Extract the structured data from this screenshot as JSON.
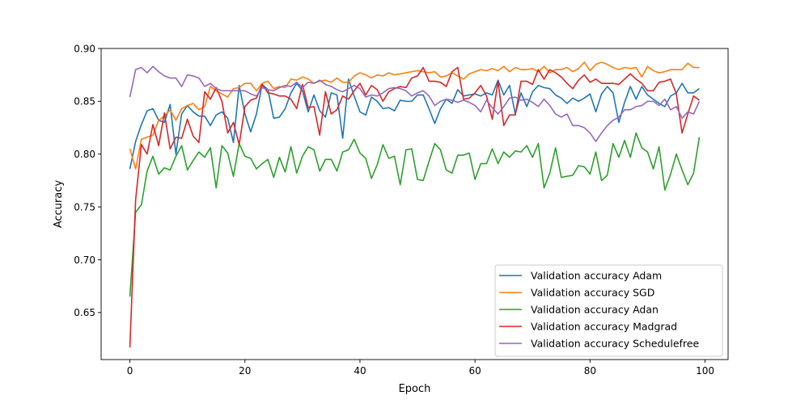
{
  "chart_data": {
    "type": "line",
    "title": "",
    "xlabel": "Epoch",
    "ylabel": "Accuracy",
    "xlim": [
      -5,
      104
    ],
    "ylim": [
      0.6055,
      0.9
    ],
    "xticks": [
      0,
      20,
      40,
      60,
      80,
      100
    ],
    "yticks": [
      0.65,
      0.7,
      0.75,
      0.8,
      0.85,
      0.9
    ],
    "xtick_labels": [
      "0",
      "20",
      "40",
      "60",
      "80",
      "100"
    ],
    "ytick_labels": [
      "0.65",
      "0.70",
      "0.75",
      "0.80",
      "0.85",
      "0.90"
    ],
    "grid": false,
    "legend_position": "lower right",
    "x": [
      0,
      1,
      2,
      3,
      4,
      5,
      6,
      7,
      8,
      9,
      10,
      11,
      12,
      13,
      14,
      15,
      16,
      17,
      18,
      19,
      20,
      21,
      22,
      23,
      24,
      25,
      26,
      27,
      28,
      29,
      30,
      31,
      32,
      33,
      34,
      35,
      36,
      37,
      38,
      39,
      40,
      41,
      42,
      43,
      44,
      45,
      46,
      47,
      48,
      49,
      50,
      51,
      52,
      53,
      54,
      55,
      56,
      57,
      58,
      59,
      60,
      61,
      62,
      63,
      64,
      65,
      66,
      67,
      68,
      69,
      70,
      71,
      72,
      73,
      74,
      75,
      76,
      77,
      78,
      79,
      80,
      81,
      82,
      83,
      84,
      85,
      86,
      87,
      88,
      89,
      90,
      91,
      92,
      93,
      94,
      95,
      96,
      97,
      98,
      99
    ],
    "series": [
      {
        "name": "Validation accuracy Adam",
        "color": "#1f77b4",
        "values": [
          0.786,
          0.812,
          0.828,
          0.841,
          0.843,
          0.832,
          0.83,
          0.847,
          0.8,
          0.838,
          0.846,
          0.84,
          0.836,
          0.836,
          0.827,
          0.837,
          0.84,
          0.834,
          0.811,
          0.865,
          0.838,
          0.821,
          0.838,
          0.866,
          0.861,
          0.834,
          0.835,
          0.843,
          0.858,
          0.867,
          0.86,
          0.84,
          0.856,
          0.841,
          0.835,
          0.858,
          0.856,
          0.815,
          0.871,
          0.855,
          0.84,
          0.837,
          0.854,
          0.85,
          0.843,
          0.844,
          0.841,
          0.851,
          0.85,
          0.85,
          0.856,
          0.856,
          0.843,
          0.829,
          0.843,
          0.852,
          0.848,
          0.861,
          0.855,
          0.856,
          0.857,
          0.855,
          0.858,
          0.856,
          0.87,
          0.856,
          0.865,
          0.838,
          0.858,
          0.845,
          0.859,
          0.865,
          0.863,
          0.862,
          0.856,
          0.853,
          0.848,
          0.853,
          0.85,
          0.853,
          0.857,
          0.84,
          0.857,
          0.864,
          0.858,
          0.83,
          0.849,
          0.864,
          0.852,
          0.864,
          0.856,
          0.852,
          0.848,
          0.845,
          0.855,
          0.858,
          0.867,
          0.858,
          0.858,
          0.862
        ]
      },
      {
        "name": "Validation accuracy SGD",
        "color": "#ff7f0e",
        "values": [
          0.805,
          0.786,
          0.814,
          0.816,
          0.818,
          0.832,
          0.836,
          0.842,
          0.832,
          0.843,
          0.846,
          0.848,
          0.842,
          0.845,
          0.864,
          0.86,
          0.857,
          0.854,
          0.862,
          0.863,
          0.867,
          0.867,
          0.86,
          0.867,
          0.869,
          0.862,
          0.864,
          0.863,
          0.871,
          0.87,
          0.873,
          0.871,
          0.867,
          0.869,
          0.87,
          0.868,
          0.872,
          0.868,
          0.868,
          0.874,
          0.877,
          0.875,
          0.872,
          0.875,
          0.874,
          0.877,
          0.875,
          0.876,
          0.877,
          0.878,
          0.879,
          0.878,
          0.877,
          0.878,
          0.873,
          0.874,
          0.877,
          0.874,
          0.871,
          0.876,
          0.878,
          0.88,
          0.879,
          0.881,
          0.879,
          0.883,
          0.878,
          0.882,
          0.88,
          0.88,
          0.881,
          0.878,
          0.883,
          0.877,
          0.88,
          0.88,
          0.882,
          0.878,
          0.881,
          0.887,
          0.879,
          0.885,
          0.887,
          0.885,
          0.882,
          0.88,
          0.882,
          0.881,
          0.882,
          0.873,
          0.883,
          0.879,
          0.877,
          0.878,
          0.88,
          0.88,
          0.88,
          0.886,
          0.882,
          0.882
        ]
      },
      {
        "name": "Validation accuracy Adan",
        "color": "#2ca02c",
        "values": [
          0.665,
          0.745,
          0.752,
          0.784,
          0.798,
          0.781,
          0.787,
          0.785,
          0.798,
          0.808,
          0.785,
          0.794,
          0.802,
          0.797,
          0.806,
          0.768,
          0.808,
          0.801,
          0.779,
          0.81,
          0.798,
          0.796,
          0.786,
          0.791,
          0.795,
          0.778,
          0.797,
          0.783,
          0.807,
          0.782,
          0.798,
          0.807,
          0.804,
          0.784,
          0.795,
          0.795,
          0.784,
          0.802,
          0.804,
          0.814,
          0.801,
          0.796,
          0.777,
          0.79,
          0.809,
          0.796,
          0.798,
          0.771,
          0.804,
          0.805,
          0.776,
          0.775,
          0.793,
          0.81,
          0.804,
          0.785,
          0.782,
          0.799,
          0.799,
          0.801,
          0.776,
          0.791,
          0.791,
          0.805,
          0.791,
          0.802,
          0.797,
          0.803,
          0.802,
          0.808,
          0.797,
          0.81,
          0.768,
          0.782,
          0.806,
          0.778,
          0.779,
          0.78,
          0.789,
          0.788,
          0.781,
          0.802,
          0.775,
          0.78,
          0.81,
          0.797,
          0.813,
          0.797,
          0.82,
          0.806,
          0.802,
          0.786,
          0.807,
          0.766,
          0.781,
          0.8,
          0.785,
          0.771,
          0.782,
          0.816
        ]
      },
      {
        "name": "Validation accuracy Madgrad",
        "color": "#d62728",
        "values": [
          0.617,
          0.757,
          0.809,
          0.8,
          0.828,
          0.808,
          0.839,
          0.805,
          0.816,
          0.815,
          0.833,
          0.817,
          0.811,
          0.859,
          0.852,
          0.863,
          0.85,
          0.82,
          0.83,
          0.809,
          0.845,
          0.851,
          0.853,
          0.866,
          0.858,
          0.857,
          0.855,
          0.855,
          0.852,
          0.843,
          0.866,
          0.844,
          0.845,
          0.818,
          0.859,
          0.838,
          0.842,
          0.855,
          0.852,
          0.86,
          0.867,
          0.856,
          0.865,
          0.861,
          0.85,
          0.859,
          0.862,
          0.864,
          0.863,
          0.872,
          0.874,
          0.882,
          0.869,
          0.869,
          0.868,
          0.864,
          0.878,
          0.882,
          0.852,
          0.853,
          0.858,
          0.865,
          0.855,
          0.833,
          0.869,
          0.827,
          0.837,
          0.837,
          0.869,
          0.869,
          0.866,
          0.88,
          0.871,
          0.88,
          0.877,
          0.873,
          0.867,
          0.862,
          0.87,
          0.875,
          0.868,
          0.871,
          0.867,
          0.867,
          0.867,
          0.866,
          0.871,
          0.876,
          0.871,
          0.867,
          0.86,
          0.86,
          0.868,
          0.869,
          0.871,
          0.857,
          0.82,
          0.838,
          0.855,
          0.851
        ]
      },
      {
        "name": "Validation accuracy Schedulefree",
        "color": "#9467bd",
        "values": [
          0.854,
          0.88,
          0.882,
          0.877,
          0.883,
          0.878,
          0.874,
          0.872,
          0.872,
          0.864,
          0.875,
          0.874,
          0.872,
          0.864,
          0.867,
          0.862,
          0.86,
          0.86,
          0.86,
          0.86,
          0.86,
          0.857,
          0.855,
          0.863,
          0.861,
          0.86,
          0.863,
          0.865,
          0.864,
          0.868,
          0.863,
          0.868,
          0.867,
          0.87,
          0.866,
          0.864,
          0.861,
          0.859,
          0.862,
          0.865,
          0.862,
          0.854,
          0.856,
          0.855,
          0.858,
          0.862,
          0.863,
          0.862,
          0.86,
          0.855,
          0.858,
          0.86,
          0.855,
          0.846,
          0.85,
          0.852,
          0.851,
          0.849,
          0.851,
          0.849,
          0.846,
          0.84,
          0.851,
          0.844,
          0.838,
          0.845,
          0.853,
          0.854,
          0.851,
          0.852,
          0.849,
          0.845,
          0.852,
          0.846,
          0.838,
          0.835,
          0.838,
          0.827,
          0.827,
          0.825,
          0.82,
          0.812,
          0.82,
          0.827,
          0.832,
          0.835,
          0.842,
          0.842,
          0.845,
          0.846,
          0.85,
          0.85,
          0.846,
          0.852,
          0.842,
          0.845,
          0.834,
          0.84,
          0.838,
          0.85
        ]
      }
    ]
  }
}
